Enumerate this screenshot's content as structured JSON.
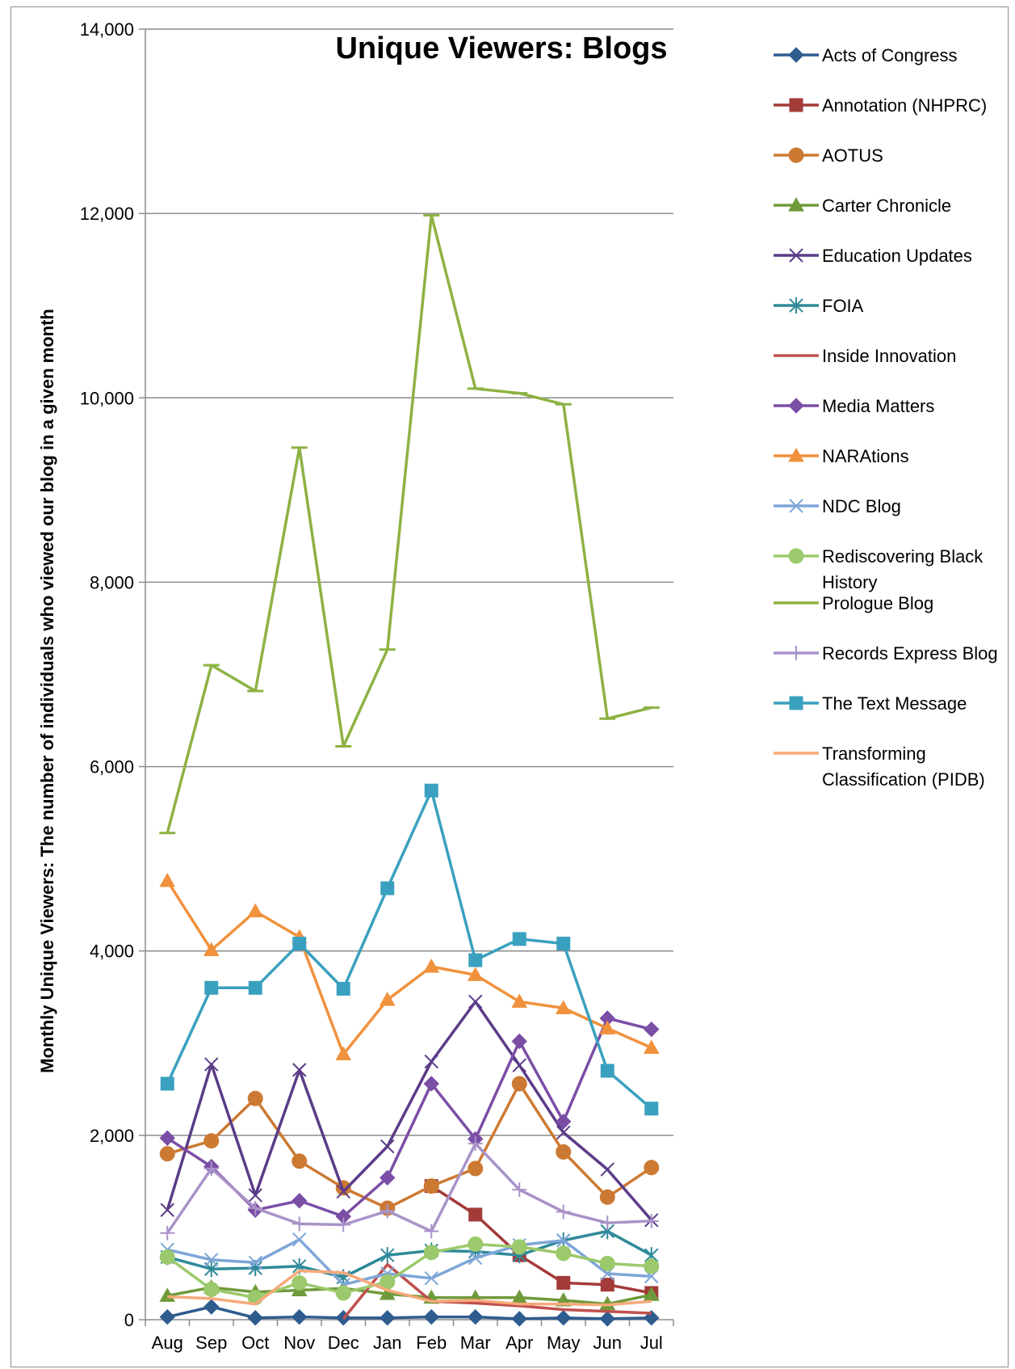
{
  "chart_data": {
    "type": "line",
    "title": "Unique Viewers: Blogs",
    "xlabel": "",
    "ylabel": "Monthly Unique Viewers: The number of individuals who viewed our blog in a given month",
    "ylim": [
      0,
      14000
    ],
    "ytick_labels": [
      "0",
      "2,000",
      "4,000",
      "6,000",
      "8,000",
      "10,000",
      "12,000",
      "14,000"
    ],
    "grid": "horizontal",
    "legend_position": "right",
    "categories": [
      "Aug",
      "Sep",
      "Oct",
      "Nov",
      "Dec",
      "Jan",
      "Feb",
      "Mar",
      "Apr",
      "May",
      "Jun",
      "Jul"
    ],
    "series": [
      {
        "name": "Acts of Congress",
        "color": "#2f5c8f",
        "marker": "diamond",
        "values": [
          30,
          140,
          20,
          30,
          20,
          20,
          30,
          30,
          10,
          20,
          10,
          20
        ]
      },
      {
        "name": "Annotation (NHPRC)",
        "color": "#a33b39",
        "marker": "square",
        "values": [
          null,
          null,
          null,
          null,
          null,
          null,
          1450,
          1140,
          700,
          400,
          380,
          290
        ]
      },
      {
        "name": "AOTUS",
        "color": "#cc7a33",
        "marker": "circle",
        "values": [
          1800,
          1940,
          2400,
          1720,
          1430,
          1210,
          1450,
          1640,
          2560,
          1820,
          1330,
          1650
        ]
      },
      {
        "name": "Carter Chronicle",
        "color": "#6f9a3a",
        "marker": "triangle",
        "values": [
          260,
          350,
          300,
          320,
          340,
          280,
          240,
          240,
          240,
          210,
          170,
          270
        ]
      },
      {
        "name": "Education Updates",
        "color": "#5b3c88",
        "marker": "x",
        "values": [
          1190,
          2770,
          1350,
          2710,
          1390,
          1880,
          2800,
          3450,
          2760,
          2030,
          1630,
          1080
        ]
      },
      {
        "name": "FOIA",
        "color": "#2f8a99",
        "marker": "star",
        "values": [
          680,
          550,
          560,
          580,
          460,
          700,
          750,
          740,
          700,
          860,
          960,
          700
        ]
      },
      {
        "name": "Inside Innovation",
        "color": "#c0504d",
        "marker": "none",
        "values": [
          null,
          null,
          null,
          null,
          10,
          600,
          200,
          180,
          150,
          110,
          90,
          70
        ]
      },
      {
        "name": "Media Matters",
        "color": "#7b4ea6",
        "marker": "diamond",
        "values": [
          1970,
          1660,
          1190,
          1290,
          1120,
          1540,
          2560,
          1960,
          3020,
          2150,
          3270,
          3150
        ]
      },
      {
        "name": "NARAtions",
        "color": "#f0923d",
        "marker": "triangle",
        "values": [
          4760,
          4010,
          4430,
          4150,
          2880,
          3470,
          3830,
          3740,
          3450,
          3380,
          3160,
          2950
        ]
      },
      {
        "name": "NDC Blog",
        "color": "#7ea6d8",
        "marker": "x",
        "values": [
          760,
          650,
          620,
          870,
          380,
          500,
          450,
          670,
          810,
          860,
          500,
          470
        ]
      },
      {
        "name": "Rediscovering Black History",
        "color": "#9bc96b",
        "marker": "circle",
        "values": [
          680,
          330,
          240,
          400,
          290,
          410,
          730,
          820,
          790,
          720,
          610,
          580
        ]
      },
      {
        "name": "Prologue Blog",
        "color": "#8db243",
        "marker": "dash",
        "values": [
          5280,
          7100,
          6820,
          9460,
          6220,
          7270,
          11980,
          10100,
          10050,
          9930,
          6520,
          6640
        ]
      },
      {
        "name": "Records Express Blog",
        "color": "#a993c8",
        "marker": "plus",
        "values": [
          940,
          1640,
          1210,
          1040,
          1030,
          1180,
          960,
          1910,
          1410,
          1170,
          1050,
          1070
        ]
      },
      {
        "name": "The Text Message",
        "color": "#3aa0bf",
        "marker": "square",
        "values": [
          2560,
          3600,
          3600,
          4080,
          3590,
          4680,
          5740,
          3900,
          4130,
          4080,
          2700,
          2290
        ]
      },
      {
        "name": "Transforming Classification (PIDB)",
        "color": "#f7a97a",
        "marker": "none",
        "values": [
          250,
          230,
          170,
          530,
          510,
          320,
          200,
          210,
          170,
          170,
          160,
          200
        ]
      }
    ]
  }
}
